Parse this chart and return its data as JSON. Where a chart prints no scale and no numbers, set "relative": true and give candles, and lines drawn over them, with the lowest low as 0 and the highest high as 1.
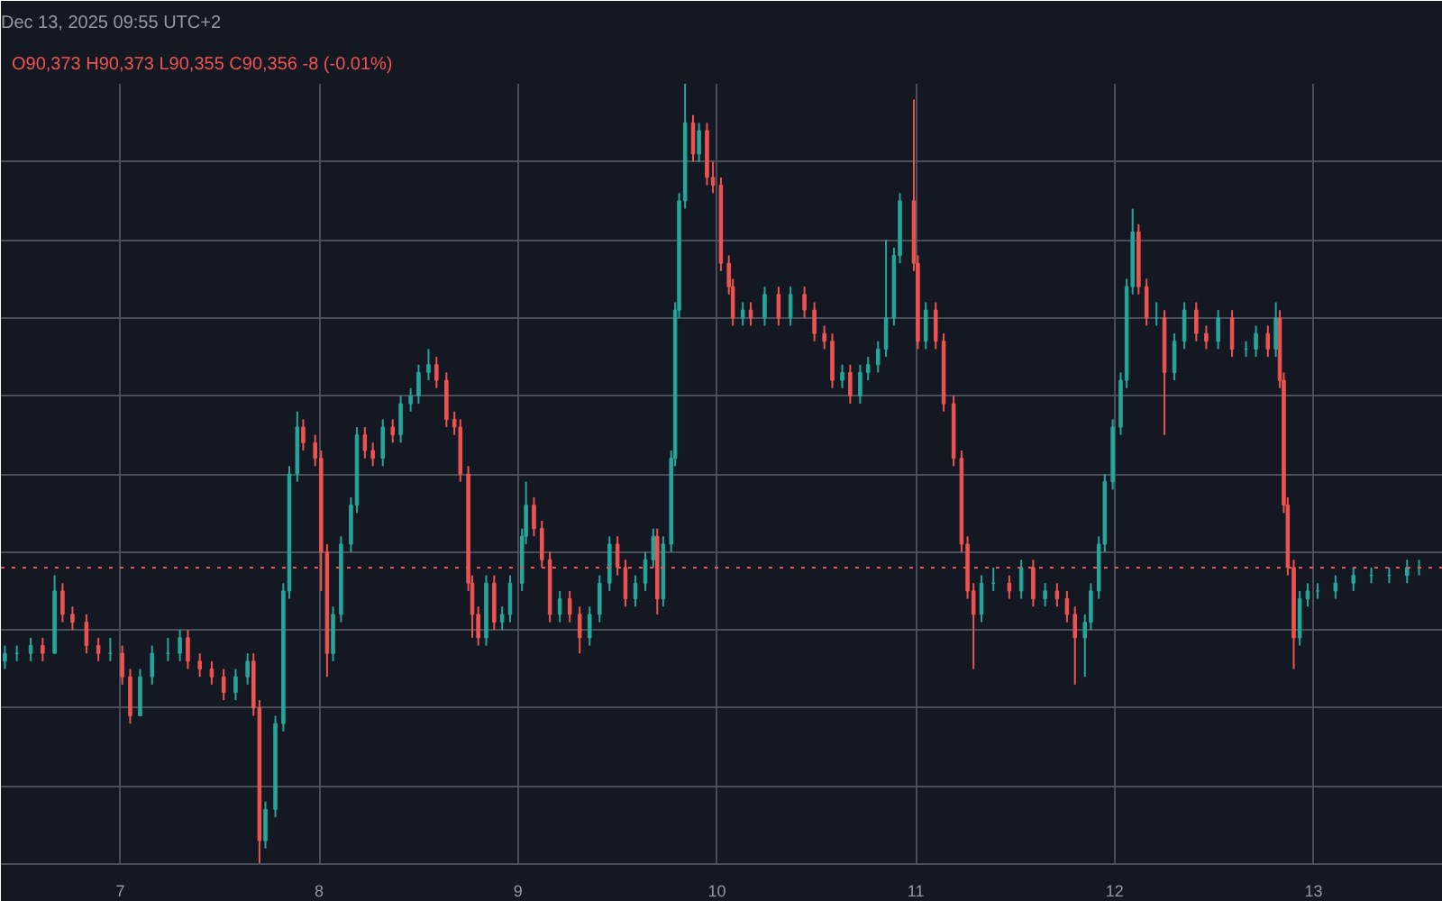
{
  "chart_data": {
    "type": "candlestick",
    "title": "Dec 13, 2025 09:55 UTC+2",
    "relative": true,
    "grid": true,
    "colors": [
      "#26a69a",
      "#26a69a",
      "#26a69a",
      "#ef5350",
      "#26a69a",
      "#ef5350",
      "#ef5350",
      "#ef5350",
      "#ef5350",
      "#26a69a",
      "#ef5350",
      "#ef5350",
      "#26a69a",
      "#26a69a",
      "#26a69a",
      "#26a69a",
      "#ef5350",
      "#ef5350",
      "#ef5350",
      "#ef5350",
      "#26a69a",
      "#26a69a",
      "#ef5350",
      "#ef5350",
      "#26a69a",
      "#26a69a",
      "#26a69a",
      "#26a69a",
      "#26a69a",
      "#ef5350",
      "#ef5350",
      "#ef5350",
      "#ef5350",
      "#26a69a",
      "#26a69a",
      "#26a69a",
      "#26a69a",
      "#ef5350",
      "#ef5350",
      "#26a69a",
      "#ef5350",
      "#26a69a",
      "#26a69a",
      "#26a69a",
      "#26a69a",
      "#ef5350",
      "#ef5350",
      "#ef5350",
      "#ef5350",
      "#ef5350",
      "#ef5350",
      "#ef5350",
      "#26a69a",
      "#ef5350",
      "#26a69a",
      "#26a69a",
      "#26a69a",
      "#26a69a",
      "#ef5350",
      "#ef5350",
      "#ef5350",
      "#26a69a",
      "#ef5350",
      "#ef5350",
      "#26a69a",
      "#26a69a",
      "#26a69a",
      "#ef5350",
      "#ef5350",
      "#26a69a",
      "#26a69a",
      "#26a69a",
      "#ef5350",
      "#26a69a",
      "#26a69a",
      "#26a69a",
      "#26a69a",
      "#26a69a",
      "#ef5350",
      "#26a69a",
      "#ef5350",
      "#ef5350",
      "#ef5350",
      "#ef5350",
      "#ef5350",
      "#26a69a",
      "#ef5350",
      "#26a69a",
      "#ef5350",
      "#26a69a",
      "#ef5350",
      "#ef5350",
      "#ef5350",
      "#ef5350",
      "#26a69a",
      "#ef5350",
      "#26a69a",
      "#26a69a",
      "#26a69a",
      "#26a69a",
      "#26a69a",
      "#26a69a",
      "#ef5350",
      "#ef5350",
      "#26a69a",
      "#ef5350",
      "#ef5350",
      "#ef5350",
      "#ef5350",
      "#ef5350",
      "#ef5350",
      "#26a69a",
      "#26a69a",
      "#ef5350",
      "#26a69a",
      "#ef5350",
      "#26a69a",
      "#ef5350",
      "#ef5350",
      "#ef5350",
      "#26a69a",
      "#26a69a",
      "#26a69a",
      "#26a69a",
      "#26a69a",
      "#26a69a",
      "#26a69a",
      "#26a69a",
      "#ef5350",
      "#ef5350",
      "#26a69a",
      "#ef5350",
      "#26a69a",
      "#26a69a",
      "#ef5350",
      "#ef5350",
      "#26a69a",
      "#ef5350",
      "#26a69a",
      "#26a69a",
      "#ef5350",
      "#26a69a",
      "#ef5350",
      "#ef5350",
      "#ef5350",
      "#ef5350",
      "#26a69a",
      "#26a69a",
      "#26a69a",
      "#26a69a",
      "#26a69a",
      "#26a69a",
      "#26a69a",
      "#26a69a",
      "#26a69a"
    ],
    "annotations": [
      "O90,373 H90,373 L90,355 C90,356 -8 (-0.01%)"
    ],
    "xlim": [
      6.4,
      13.65
    ],
    "xticks": [
      7,
      8,
      9,
      10,
      11,
      12,
      13
    ],
    "ref_lines": [
      {
        "axis": "y",
        "value": 0.38,
        "label": null,
        "color": "#ef5350",
        "line_style": "dotted"
      }
    ],
    "x": [
      6.42,
      6.48,
      6.55,
      6.61,
      6.67,
      6.71,
      6.76,
      6.83,
      6.89,
      6.95,
      7.01,
      7.05,
      7.1,
      7.16,
      7.24,
      7.3,
      7.34,
      7.4,
      7.46,
      7.52,
      7.58,
      7.64,
      7.67,
      7.7,
      7.73,
      7.78,
      7.82,
      7.85,
      7.89,
      7.92,
      7.98,
      8.01,
      8.04,
      8.07,
      8.11,
      8.16,
      8.19,
      8.23,
      8.27,
      8.32,
      8.37,
      8.41,
      8.46,
      8.5,
      8.55,
      8.59,
      8.64,
      8.68,
      8.71,
      8.75,
      8.77,
      8.8,
      8.84,
      8.88,
      8.92,
      8.96,
      9.02,
      9.04,
      9.08,
      9.12,
      9.16,
      9.21,
      9.26,
      9.31,
      9.36,
      9.41,
      9.46,
      9.5,
      9.54,
      9.59,
      9.64,
      9.68,
      9.7,
      9.73,
      9.77,
      9.79,
      9.81,
      9.84,
      9.88,
      9.91,
      9.95,
      9.98,
      10.02,
      10.06,
      10.08,
      10.13,
      10.17,
      10.24,
      10.31,
      10.37,
      10.44,
      10.49,
      10.54,
      10.58,
      10.63,
      10.67,
      10.72,
      10.76,
      10.81,
      10.85,
      10.89,
      10.92,
      10.99,
      11.01,
      11.05,
      11.1,
      11.14,
      11.19,
      11.23,
      11.26,
      11.29,
      11.33,
      11.39,
      11.47,
      11.53,
      11.59,
      11.65,
      11.71,
      11.76,
      11.8,
      11.85,
      11.88,
      11.92,
      11.95,
      11.99,
      12.03,
      12.06,
      12.09,
      12.12,
      12.16,
      12.21,
      12.25,
      12.3,
      12.35,
      12.41,
      12.46,
      12.52,
      12.59,
      12.66,
      12.71,
      12.77,
      12.81,
      12.83,
      12.85,
      12.87,
      12.9,
      12.93,
      12.97,
      13.02,
      13.11,
      13.2,
      13.29,
      13.38,
      13.47,
      13.53
    ],
    "ohlc": [
      [
        0.26,
        0.28,
        0.25,
        0.27
      ],
      [
        0.27,
        0.28,
        0.26,
        0.27
      ],
      [
        0.27,
        0.29,
        0.26,
        0.28
      ],
      [
        0.28,
        0.29,
        0.26,
        0.27
      ],
      [
        0.27,
        0.37,
        0.27,
        0.35
      ],
      [
        0.35,
        0.36,
        0.31,
        0.32
      ],
      [
        0.32,
        0.33,
        0.3,
        0.31
      ],
      [
        0.31,
        0.32,
        0.27,
        0.28
      ],
      [
        0.28,
        0.29,
        0.26,
        0.27
      ],
      [
        0.27,
        0.29,
        0.26,
        0.27
      ],
      [
        0.27,
        0.28,
        0.23,
        0.24
      ],
      [
        0.24,
        0.25,
        0.18,
        0.19
      ],
      [
        0.19,
        0.25,
        0.19,
        0.24
      ],
      [
        0.24,
        0.28,
        0.23,
        0.27
      ],
      [
        0.27,
        0.29,
        0.26,
        0.27
      ],
      [
        0.27,
        0.3,
        0.26,
        0.29
      ],
      [
        0.29,
        0.3,
        0.25,
        0.26
      ],
      [
        0.26,
        0.27,
        0.24,
        0.25
      ],
      [
        0.25,
        0.26,
        0.23,
        0.24
      ],
      [
        0.24,
        0.25,
        0.21,
        0.22
      ],
      [
        0.22,
        0.25,
        0.21,
        0.24
      ],
      [
        0.24,
        0.27,
        0.23,
        0.26
      ],
      [
        0.26,
        0.27,
        0.19,
        0.2
      ],
      [
        0.2,
        0.21,
        0,
        0.03
      ],
      [
        0.03,
        0.08,
        0.02,
        0.07
      ],
      [
        0.07,
        0.19,
        0.06,
        0.18
      ],
      [
        0.18,
        0.36,
        0.17,
        0.35
      ],
      [
        0.35,
        0.51,
        0.34,
        0.5
      ],
      [
        0.5,
        0.58,
        0.49,
        0.56
      ],
      [
        0.56,
        0.57,
        0.53,
        0.54
      ],
      [
        0.54,
        0.55,
        0.51,
        0.52
      ],
      [
        0.52,
        0.53,
        0.35,
        0.4
      ],
      [
        0.4,
        0.41,
        0.24,
        0.27
      ],
      [
        0.27,
        0.33,
        0.26,
        0.32
      ],
      [
        0.32,
        0.42,
        0.31,
        0.41
      ],
      [
        0.41,
        0.47,
        0.4,
        0.46
      ],
      [
        0.46,
        0.56,
        0.45,
        0.55
      ],
      [
        0.55,
        0.56,
        0.52,
        0.53
      ],
      [
        0.53,
        0.54,
        0.51,
        0.52
      ],
      [
        0.52,
        0.57,
        0.51,
        0.56
      ],
      [
        0.56,
        0.57,
        0.54,
        0.55
      ],
      [
        0.55,
        0.6,
        0.54,
        0.59
      ],
      [
        0.59,
        0.61,
        0.58,
        0.6
      ],
      [
        0.6,
        0.64,
        0.59,
        0.63
      ],
      [
        0.63,
        0.66,
        0.62,
        0.64
      ],
      [
        0.64,
        0.65,
        0.61,
        0.62
      ],
      [
        0.62,
        0.63,
        0.56,
        0.57
      ],
      [
        0.57,
        0.58,
        0.55,
        0.56
      ],
      [
        0.56,
        0.57,
        0.49,
        0.5
      ],
      [
        0.5,
        0.51,
        0.35,
        0.36
      ],
      [
        0.36,
        0.37,
        0.29,
        0.32
      ],
      [
        0.32,
        0.33,
        0.28,
        0.29
      ],
      [
        0.29,
        0.37,
        0.28,
        0.36
      ],
      [
        0.36,
        0.37,
        0.3,
        0.31
      ],
      [
        0.31,
        0.33,
        0.3,
        0.32
      ],
      [
        0.32,
        0.37,
        0.31,
        0.36
      ],
      [
        0.36,
        0.43,
        0.35,
        0.42
      ],
      [
        0.42,
        0.49,
        0.41,
        0.46
      ],
      [
        0.46,
        0.47,
        0.42,
        0.43
      ],
      [
        0.43,
        0.44,
        0.38,
        0.39
      ],
      [
        0.39,
        0.4,
        0.31,
        0.32
      ],
      [
        0.32,
        0.35,
        0.31,
        0.34
      ],
      [
        0.34,
        0.35,
        0.31,
        0.32
      ],
      [
        0.32,
        0.33,
        0.27,
        0.29
      ],
      [
        0.29,
        0.33,
        0.28,
        0.32
      ],
      [
        0.32,
        0.37,
        0.31,
        0.36
      ],
      [
        0.36,
        0.42,
        0.35,
        0.41
      ],
      [
        0.41,
        0.42,
        0.37,
        0.38
      ],
      [
        0.38,
        0.39,
        0.33,
        0.34
      ],
      [
        0.34,
        0.37,
        0.33,
        0.36
      ],
      [
        0.36,
        0.4,
        0.35,
        0.39
      ],
      [
        0.39,
        0.43,
        0.38,
        0.42
      ],
      [
        0.42,
        0.43,
        0.32,
        0.34
      ],
      [
        0.34,
        0.42,
        0.33,
        0.41
      ],
      [
        0.41,
        0.53,
        0.4,
        0.52
      ],
      [
        0.52,
        0.72,
        0.51,
        0.71
      ],
      [
        0.71,
        0.86,
        0.7,
        0.85
      ],
      [
        0.85,
        1,
        0.84,
        0.95
      ],
      [
        0.95,
        0.96,
        0.9,
        0.91
      ],
      [
        0.91,
        0.95,
        0.9,
        0.94
      ],
      [
        0.94,
        0.95,
        0.87,
        0.88
      ],
      [
        0.88,
        0.9,
        0.86,
        0.87
      ],
      [
        0.87,
        0.88,
        0.76,
        0.77
      ],
      [
        0.77,
        0.78,
        0.73,
        0.74
      ],
      [
        0.74,
        0.75,
        0.69,
        0.7
      ],
      [
        0.7,
        0.72,
        0.69,
        0.71
      ],
      [
        0.71,
        0.72,
        0.69,
        0.7
      ],
      [
        0.7,
        0.74,
        0.69,
        0.73
      ],
      [
        0.73,
        0.74,
        0.69,
        0.7
      ],
      [
        0.7,
        0.74,
        0.69,
        0.73
      ],
      [
        0.73,
        0.74,
        0.7,
        0.71
      ],
      [
        0.71,
        0.72,
        0.67,
        0.68
      ],
      [
        0.68,
        0.69,
        0.66,
        0.67
      ],
      [
        0.67,
        0.68,
        0.61,
        0.62
      ],
      [
        0.62,
        0.64,
        0.61,
        0.63
      ],
      [
        0.63,
        0.64,
        0.59,
        0.6
      ],
      [
        0.6,
        0.64,
        0.59,
        0.63
      ],
      [
        0.63,
        0.65,
        0.62,
        0.64
      ],
      [
        0.64,
        0.67,
        0.63,
        0.66
      ],
      [
        0.66,
        0.8,
        0.65,
        0.7
      ],
      [
        0.7,
        0.79,
        0.69,
        0.78
      ],
      [
        0.78,
        0.86,
        0.77,
        0.85
      ],
      [
        0.85,
        0.98,
        0.76,
        0.77
      ],
      [
        0.77,
        0.78,
        0.66,
        0.67
      ],
      [
        0.67,
        0.72,
        0.66,
        0.71
      ],
      [
        0.71,
        0.72,
        0.66,
        0.67
      ],
      [
        0.67,
        0.68,
        0.58,
        0.59
      ],
      [
        0.59,
        0.6,
        0.51,
        0.52
      ],
      [
        0.52,
        0.53,
        0.4,
        0.41
      ],
      [
        0.41,
        0.42,
        0.34,
        0.35
      ],
      [
        0.35,
        0.36,
        0.25,
        0.32
      ],
      [
        0.32,
        0.37,
        0.31,
        0.36
      ],
      [
        0.36,
        0.38,
        0.35,
        0.36
      ],
      [
        0.36,
        0.37,
        0.34,
        0.35
      ],
      [
        0.35,
        0.39,
        0.34,
        0.38
      ],
      [
        0.38,
        0.39,
        0.33,
        0.34
      ],
      [
        0.34,
        0.36,
        0.33,
        0.35
      ],
      [
        0.35,
        0.36,
        0.33,
        0.34
      ],
      [
        0.34,
        0.35,
        0.31,
        0.32
      ],
      [
        0.32,
        0.33,
        0.23,
        0.29
      ],
      [
        0.29,
        0.32,
        0.24,
        0.31
      ],
      [
        0.31,
        0.36,
        0.3,
        0.35
      ],
      [
        0.35,
        0.42,
        0.34,
        0.41
      ],
      [
        0.41,
        0.5,
        0.4,
        0.49
      ],
      [
        0.49,
        0.57,
        0.48,
        0.56
      ],
      [
        0.56,
        0.63,
        0.55,
        0.62
      ],
      [
        0.62,
        0.75,
        0.61,
        0.74
      ],
      [
        0.74,
        0.84,
        0.73,
        0.81
      ],
      [
        0.81,
        0.82,
        0.73,
        0.74
      ],
      [
        0.74,
        0.75,
        0.69,
        0.7
      ],
      [
        0.7,
        0.72,
        0.69,
        0.7
      ],
      [
        0.7,
        0.71,
        0.55,
        0.63
      ],
      [
        0.63,
        0.68,
        0.62,
        0.67
      ],
      [
        0.67,
        0.72,
        0.66,
        0.71
      ],
      [
        0.71,
        0.72,
        0.67,
        0.68
      ],
      [
        0.68,
        0.69,
        0.66,
        0.67
      ],
      [
        0.67,
        0.71,
        0.66,
        0.7
      ],
      [
        0.7,
        0.71,
        0.65,
        0.66
      ],
      [
        0.66,
        0.67,
        0.65,
        0.66
      ],
      [
        0.66,
        0.69,
        0.65,
        0.68
      ],
      [
        0.68,
        0.69,
        0.65,
        0.66
      ],
      [
        0.66,
        0.72,
        0.65,
        0.7
      ],
      [
        0.7,
        0.71,
        0.61,
        0.62
      ],
      [
        0.62,
        0.63,
        0.45,
        0.46
      ],
      [
        0.46,
        0.47,
        0.37,
        0.38
      ],
      [
        0.38,
        0.39,
        0.25,
        0.29
      ],
      [
        0.29,
        0.35,
        0.28,
        0.34
      ],
      [
        0.34,
        0.36,
        0.33,
        0.35
      ],
      [
        0.35,
        0.36,
        0.34,
        0.35
      ],
      [
        0.35,
        0.37,
        0.34,
        0.36
      ],
      [
        0.36,
        0.38,
        0.35,
        0.37
      ],
      [
        0.37,
        0.38,
        0.36,
        0.37
      ],
      [
        0.37,
        0.38,
        0.36,
        0.37
      ],
      [
        0.37,
        0.39,
        0.36,
        0.38
      ],
      [
        0.38,
        0.39,
        0.37,
        0.38
      ]
    ]
  }
}
